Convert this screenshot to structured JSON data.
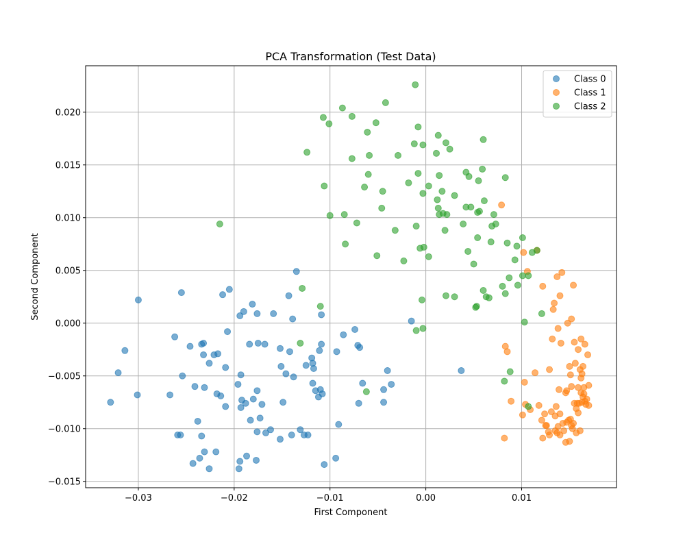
{
  "chart_data": {
    "type": "scatter",
    "title": "PCA Transformation (Test Data)",
    "xlabel": "First Component",
    "ylabel": "Second Component",
    "xlim": [
      -0.0355,
      0.0199
    ],
    "ylim": [
      -0.0156,
      0.0244
    ],
    "xticks": [
      -0.03,
      -0.02,
      -0.01,
      0.0,
      0.01
    ],
    "xtick_labels": [
      "−0.03",
      "−0.02",
      "−0.01",
      "0.00",
      "0.01"
    ],
    "yticks": [
      -0.015,
      -0.01,
      -0.005,
      0.0,
      0.005,
      0.01,
      0.015,
      0.02
    ],
    "ytick_labels": [
      "−0.015",
      "−0.010",
      "−0.005",
      "0.000",
      "0.005",
      "0.010",
      "0.015",
      "0.020"
    ],
    "grid": true,
    "legend_position": "top-right",
    "series": [
      {
        "name": "Class 0",
        "color": "#1f77b4",
        "points": [
          [
            -0.0329,
            -0.0075
          ],
          [
            -0.0321,
            -0.0047
          ],
          [
            -0.0314,
            -0.0026
          ],
          [
            -0.0301,
            -0.0068
          ],
          [
            -0.03,
            0.0022
          ],
          [
            -0.0267,
            -0.0068
          ],
          [
            -0.0262,
            -0.0013
          ],
          [
            -0.0259,
            -0.0106
          ],
          [
            -0.0256,
            -0.0106
          ],
          [
            -0.0255,
            0.0029
          ],
          [
            -0.0254,
            -0.005
          ],
          [
            -0.0246,
            -0.0022
          ],
          [
            -0.0243,
            -0.0133
          ],
          [
            -0.0241,
            -0.006
          ],
          [
            -0.0238,
            -0.0093
          ],
          [
            -0.0236,
            -0.0128
          ],
          [
            -0.0234,
            -0.002
          ],
          [
            -0.0234,
            -0.0107
          ],
          [
            -0.0232,
            -0.0019
          ],
          [
            -0.0232,
            -0.003
          ],
          [
            -0.0231,
            -0.0122
          ],
          [
            -0.0231,
            -0.0061
          ],
          [
            -0.0226,
            -0.0138
          ],
          [
            -0.0226,
            -0.0038
          ],
          [
            -0.0221,
            -0.003
          ],
          [
            -0.0219,
            -0.0122
          ],
          [
            -0.0218,
            -0.0067
          ],
          [
            -0.0217,
            -0.0029
          ],
          [
            -0.0214,
            -0.0069
          ],
          [
            -0.0212,
            0.0027
          ],
          [
            -0.0209,
            -0.0042
          ],
          [
            -0.0209,
            -0.0079
          ],
          [
            -0.0207,
            -0.0008
          ],
          [
            -0.0205,
            0.0032
          ],
          [
            -0.0196,
            -0.0058
          ],
          [
            -0.0195,
            -0.0138
          ],
          [
            -0.0194,
            -0.0131
          ],
          [
            -0.0194,
            0.0007
          ],
          [
            -0.0193,
            -0.0049
          ],
          [
            -0.0193,
            -0.008
          ],
          [
            -0.0192,
            -0.0073
          ],
          [
            -0.019,
            0.0011
          ],
          [
            -0.0188,
            -0.0076
          ],
          [
            -0.0187,
            -0.0126
          ],
          [
            -0.0184,
            -0.002
          ],
          [
            -0.0183,
            -0.0092
          ],
          [
            -0.0181,
            0.0018
          ],
          [
            -0.018,
            -0.0072
          ],
          [
            -0.0177,
            -0.013
          ],
          [
            -0.0176,
            0.0009
          ],
          [
            -0.0176,
            -0.0103
          ],
          [
            -0.0176,
            -0.0064
          ],
          [
            -0.0175,
            -0.0019
          ],
          [
            -0.0173,
            -0.009
          ],
          [
            -0.0171,
            -0.0077
          ],
          [
            -0.0168,
            -0.002
          ],
          [
            -0.0167,
            -0.0104
          ],
          [
            -0.0162,
            -0.0101
          ],
          [
            -0.0159,
            0.0009
          ],
          [
            -0.0152,
            -0.011
          ],
          [
            -0.0152,
            -0.0024
          ],
          [
            -0.0151,
            -0.0041
          ],
          [
            -0.0149,
            -0.0075
          ],
          [
            -0.0146,
            -0.0048
          ],
          [
            -0.0143,
            0.0026
          ],
          [
            -0.0142,
            -0.0027
          ],
          [
            -0.014,
            -0.0106
          ],
          [
            -0.0139,
            0.0004
          ],
          [
            -0.0138,
            -0.0051
          ],
          [
            -0.0135,
            0.0049
          ],
          [
            -0.0131,
            -0.0101
          ],
          [
            -0.0127,
            -0.0106
          ],
          [
            -0.0125,
            -0.004
          ],
          [
            -0.0123,
            -0.0106
          ],
          [
            -0.0119,
            -0.0033
          ],
          [
            -0.0118,
            -0.0057
          ],
          [
            -0.0118,
            -0.0038
          ],
          [
            -0.0117,
            -0.0043
          ],
          [
            -0.0115,
            -0.0064
          ],
          [
            -0.0112,
            -0.007
          ],
          [
            -0.0111,
            -0.0026
          ],
          [
            -0.011,
            -0.0063
          ],
          [
            -0.0109,
            0.0008
          ],
          [
            -0.0109,
            -0.002
          ],
          [
            -0.0108,
            -0.0067
          ],
          [
            -0.0106,
            -0.0134
          ],
          [
            -0.0094,
            -0.0128
          ],
          [
            -0.0093,
            -0.0027
          ],
          [
            -0.0091,
            -0.0096
          ],
          [
            -0.0086,
            -0.0011
          ],
          [
            -0.0074,
            -0.0006
          ],
          [
            -0.0071,
            -0.0021
          ],
          [
            -0.007,
            -0.0076
          ],
          [
            -0.0069,
            -0.0023
          ],
          [
            -0.0066,
            -0.0057
          ],
          [
            -0.0044,
            -0.0063
          ],
          [
            -0.0044,
            -0.0075
          ],
          [
            -0.004,
            -0.0045
          ],
          [
            -0.0036,
            -0.0058
          ],
          [
            -0.0015,
            0.0002
          ],
          [
            0.0037,
            -0.0045
          ]
        ]
      },
      {
        "name": "Class 1",
        "color": "#ff7f0e",
        "points": [
          [
            0.0079,
            0.0112
          ],
          [
            0.0082,
            -0.0109
          ],
          [
            0.0083,
            -0.0022
          ],
          [
            0.0085,
            -0.0027
          ],
          [
            0.0089,
            -0.0074
          ],
          [
            0.0101,
            -0.0087
          ],
          [
            0.0102,
            0.0067
          ],
          [
            0.0103,
            -0.0056
          ],
          [
            0.0104,
            -0.0077
          ],
          [
            0.0106,
            0.0049
          ],
          [
            0.0109,
            -0.0082
          ],
          [
            0.0114,
            -0.0047
          ],
          [
            0.0116,
            0.0069
          ],
          [
            0.0118,
            -0.0078
          ],
          [
            0.0121,
            -0.0092
          ],
          [
            0.0122,
            -0.0109
          ],
          [
            0.0122,
            0.0035
          ],
          [
            0.0124,
            -0.0086
          ],
          [
            0.0125,
            -0.0097
          ],
          [
            0.0126,
            -0.0097
          ],
          [
            0.0128,
            -0.0103
          ],
          [
            0.0129,
            -0.0106
          ],
          [
            0.0129,
            -0.0044
          ],
          [
            0.0131,
            -0.0084
          ],
          [
            0.0132,
            -0.0015
          ],
          [
            0.0133,
            0.0013
          ],
          [
            0.0134,
            0.0019
          ],
          [
            0.0135,
            -0.0102
          ],
          [
            0.0135,
            -0.0088
          ],
          [
            0.0136,
            -0.0079
          ],
          [
            0.0137,
            0.0044
          ],
          [
            0.0137,
            -0.0104
          ],
          [
            0.0138,
            -0.0005
          ],
          [
            0.0138,
            -0.0098
          ],
          [
            0.0139,
            -0.0063
          ],
          [
            0.014,
            -0.0086
          ],
          [
            0.014,
            -0.0106
          ],
          [
            0.014,
            0.0026
          ],
          [
            0.0141,
            -0.0019
          ],
          [
            0.0142,
            0.0048
          ],
          [
            0.0143,
            -0.0095
          ],
          [
            0.0144,
            -0.0102
          ],
          [
            0.0146,
            -0.0066
          ],
          [
            0.0146,
            -0.0113
          ],
          [
            0.0147,
            -0.0064
          ],
          [
            0.0147,
            -0.0094
          ],
          [
            0.0148,
            0.0
          ],
          [
            0.0149,
            -0.0092
          ],
          [
            0.015,
            -0.0041
          ],
          [
            0.015,
            -0.0112
          ],
          [
            0.0151,
            -0.0049
          ],
          [
            0.0151,
            -0.0091
          ],
          [
            0.0152,
            0.0004
          ],
          [
            0.0152,
            -0.006
          ],
          [
            0.0152,
            -0.0097
          ],
          [
            0.0153,
            -0.01
          ],
          [
            0.0154,
            -0.0095
          ],
          [
            0.0154,
            0.0036
          ],
          [
            0.0155,
            -0.0018
          ],
          [
            0.0155,
            -0.0076
          ],
          [
            0.0156,
            -0.0038
          ],
          [
            0.0157,
            -0.0104
          ],
          [
            0.0157,
            -0.0081
          ],
          [
            0.0158,
            -0.0076
          ],
          [
            0.0159,
            -0.0061
          ],
          [
            0.0159,
            -0.0085
          ],
          [
            0.0159,
            -0.0025
          ],
          [
            0.016,
            -0.0076
          ],
          [
            0.0161,
            -0.0102
          ],
          [
            0.0161,
            -0.0044
          ],
          [
            0.0162,
            -0.0066
          ],
          [
            0.0162,
            -0.0015
          ],
          [
            0.0162,
            -0.0052
          ],
          [
            0.0163,
            -0.0075
          ],
          [
            0.0163,
            -0.0048
          ],
          [
            0.0164,
            -0.0041
          ],
          [
            0.0164,
            -0.007
          ],
          [
            0.0165,
            -0.0067
          ],
          [
            0.0165,
            -0.0061
          ],
          [
            0.0166,
            -0.0074
          ],
          [
            0.0166,
            -0.002
          ],
          [
            0.0167,
            -0.0077
          ],
          [
            0.0168,
            -0.0072
          ],
          [
            0.0169,
            -0.003
          ],
          [
            0.017,
            -0.0059
          ],
          [
            0.017,
            -0.0078
          ]
        ]
      },
      {
        "name": "Class 2",
        "color": "#2ca02c",
        "points": [
          [
            -0.0215,
            0.0094
          ],
          [
            -0.0131,
            -0.0019
          ],
          [
            -0.0129,
            0.0033
          ],
          [
            -0.0124,
            0.0162
          ],
          [
            -0.011,
            0.0016
          ],
          [
            -0.0107,
            0.0195
          ],
          [
            -0.0106,
            0.013
          ],
          [
            -0.0101,
            0.0189
          ],
          [
            -0.01,
            0.0102
          ],
          [
            -0.0087,
            0.0204
          ],
          [
            -0.0085,
            0.0103
          ],
          [
            -0.0084,
            0.0075
          ],
          [
            -0.0077,
            0.0196
          ],
          [
            -0.0077,
            0.0156
          ],
          [
            -0.0072,
            0.0095
          ],
          [
            -0.0064,
            0.0129
          ],
          [
            -0.0062,
            -0.0065
          ],
          [
            -0.0061,
            0.0181
          ],
          [
            -0.006,
            0.0141
          ],
          [
            -0.0059,
            0.0159
          ],
          [
            -0.0052,
            0.019
          ],
          [
            -0.0051,
            0.0064
          ],
          [
            -0.0046,
            0.0109
          ],
          [
            -0.0045,
            0.0125
          ],
          [
            -0.0042,
            0.0209
          ],
          [
            -0.0032,
            0.0088
          ],
          [
            -0.0029,
            0.0159
          ],
          [
            -0.0023,
            0.0059
          ],
          [
            -0.0018,
            0.0133
          ],
          [
            -0.0012,
            0.017
          ],
          [
            -0.0011,
            0.0226
          ],
          [
            -0.001,
            0.0092
          ],
          [
            -0.001,
            -0.0007
          ],
          [
            -0.0008,
            0.0186
          ],
          [
            -0.0008,
            0.0142
          ],
          [
            -0.0006,
            0.0071
          ],
          [
            -0.0004,
            0.0022
          ],
          [
            -0.0003,
            0.0123
          ],
          [
            -0.0003,
            0.0169
          ],
          [
            -0.0003,
            -0.0005
          ],
          [
            -0.0002,
            0.0072
          ],
          [
            0.0003,
            0.013
          ],
          [
            0.0003,
            0.0063
          ],
          [
            0.0011,
            0.0161
          ],
          [
            0.0012,
            0.0117
          ],
          [
            0.0013,
            0.0178
          ],
          [
            0.0013,
            0.0109
          ],
          [
            0.0014,
            0.014
          ],
          [
            0.0014,
            0.0103
          ],
          [
            0.0017,
            0.0125
          ],
          [
            0.0018,
            0.0104
          ],
          [
            0.002,
            0.0088
          ],
          [
            0.0021,
            0.0171
          ],
          [
            0.0021,
            0.0026
          ],
          [
            0.0022,
            0.0103
          ],
          [
            0.0025,
            0.0165
          ],
          [
            0.003,
            0.0121
          ],
          [
            0.003,
            0.0025
          ],
          [
            0.0039,
            0.0094
          ],
          [
            0.0042,
            0.011
          ],
          [
            0.0042,
            0.0143
          ],
          [
            0.0044,
            0.0068
          ],
          [
            0.0045,
            0.0139
          ],
          [
            0.0047,
            0.011
          ],
          [
            0.005,
            0.0056
          ],
          [
            0.0052,
            0.0015
          ],
          [
            0.0053,
            0.0016
          ],
          [
            0.0054,
            0.0105
          ],
          [
            0.0054,
            0.0081
          ],
          [
            0.0055,
            0.0135
          ],
          [
            0.0056,
            0.0106
          ],
          [
            0.0059,
            0.0146
          ],
          [
            0.006,
            0.0031
          ],
          [
            0.006,
            0.0174
          ],
          [
            0.0061,
            0.0116
          ],
          [
            0.0063,
            0.0025
          ],
          [
            0.0066,
            0.0024
          ],
          [
            0.0068,
            0.0077
          ],
          [
            0.0069,
            0.0092
          ],
          [
            0.0071,
            0.0103
          ],
          [
            0.0073,
            0.0094
          ],
          [
            0.008,
            0.0035
          ],
          [
            0.0082,
            -0.0055
          ],
          [
            0.0083,
            0.0028
          ],
          [
            0.0083,
            0.0138
          ],
          [
            0.0085,
            0.0076
          ],
          [
            0.0087,
            0.0043
          ],
          [
            0.0088,
            -0.0046
          ],
          [
            0.0093,
            0.006
          ],
          [
            0.0095,
            0.0073
          ],
          [
            0.0096,
            0.0036
          ],
          [
            0.0101,
            0.0045
          ],
          [
            0.0101,
            0.0081
          ],
          [
            0.0103,
            0.0001
          ],
          [
            0.0107,
            0.0045
          ],
          [
            0.0107,
            -0.0079
          ],
          [
            0.0111,
            0.0067
          ],
          [
            0.0116,
            0.0069
          ],
          [
            0.0121,
            0.0009
          ]
        ]
      }
    ]
  }
}
